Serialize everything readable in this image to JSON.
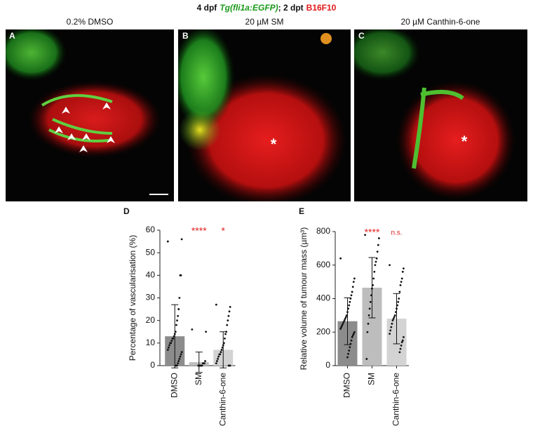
{
  "header": {
    "parts": [
      "4 dpf",
      "Tg(fli1a:EGFP)",
      "; 2 dpt",
      "B16F10"
    ]
  },
  "panels": [
    {
      "label": "A",
      "title": "0.2% DMSO"
    },
    {
      "label": "B",
      "title": "20 µM SM",
      "marker": "*"
    },
    {
      "label": "C",
      "title": "20 µM Canthin-6-one",
      "marker": "*"
    }
  ],
  "chart_data": [
    {
      "type": "bar",
      "label": "D",
      "ylabel": "Percentage of vascularisation (%)",
      "categories": [
        "DMSO",
        "SM",
        "Canthin-6-one"
      ],
      "values": [
        13,
        1.5,
        7
      ],
      "errors": [
        14,
        4.5,
        8
      ],
      "colors": [
        "#8c8c8c",
        "#bdbdbd",
        "#d3d3d3"
      ],
      "points": [
        [
          55,
          56,
          40,
          40,
          30,
          25,
          22,
          20,
          18,
          15,
          14,
          13,
          12,
          12,
          11,
          10,
          10,
          9,
          8,
          7,
          6,
          5,
          4,
          3,
          2,
          1,
          0,
          0,
          0
        ],
        [
          16,
          15,
          2,
          1,
          1,
          1,
          0,
          0,
          0,
          0,
          0,
          0
        ],
        [
          27,
          26,
          24,
          22,
          20,
          18,
          15,
          14,
          12,
          10,
          9,
          8,
          7,
          6,
          5,
          5,
          4,
          3,
          2,
          1,
          0,
          0,
          0
        ]
      ],
      "annotations": [
        {
          "category": "SM",
          "text": "****"
        },
        {
          "category": "Canthin-6-one",
          "text": "*"
        }
      ],
      "ylim": [
        0,
        60
      ],
      "yticks": [
        0,
        10,
        20,
        30,
        40,
        50,
        60
      ]
    },
    {
      "type": "bar",
      "label": "E",
      "ylabel": "Relative volume of tumour mass (µm³)",
      "categories": [
        "DMSO",
        "SM",
        "Canthin-6-one"
      ],
      "values": [
        265,
        465,
        280
      ],
      "errors": [
        140,
        180,
        150
      ],
      "colors": [
        "#8c8c8c",
        "#bdbdbd",
        "#d3d3d3"
      ],
      "points": [
        [
          640,
          520,
          500,
          470,
          440,
          420,
          400,
          380,
          360,
          340,
          320,
          300,
          290,
          280,
          270,
          260,
          250,
          240,
          230,
          220,
          200,
          190,
          180,
          170,
          150,
          130,
          110,
          90,
          70,
          50
        ],
        [
          780,
          760,
          720,
          680,
          640,
          620,
          600,
          560,
          520,
          480,
          460,
          420,
          380,
          340,
          300,
          250,
          200,
          40
        ],
        [
          600,
          580,
          560,
          520,
          500,
          480,
          440,
          400,
          380,
          360,
          340,
          320,
          300,
          290,
          280,
          270,
          250,
          230,
          210,
          190,
          170,
          150,
          140,
          120,
          100,
          80
        ]
      ],
      "annotations": [
        {
          "category": "SM",
          "text": "****"
        },
        {
          "category": "Canthin-6-one",
          "text": "n.s."
        }
      ],
      "ylim": [
        0,
        800
      ],
      "yticks": [
        0,
        200,
        400,
        600,
        800
      ]
    }
  ]
}
